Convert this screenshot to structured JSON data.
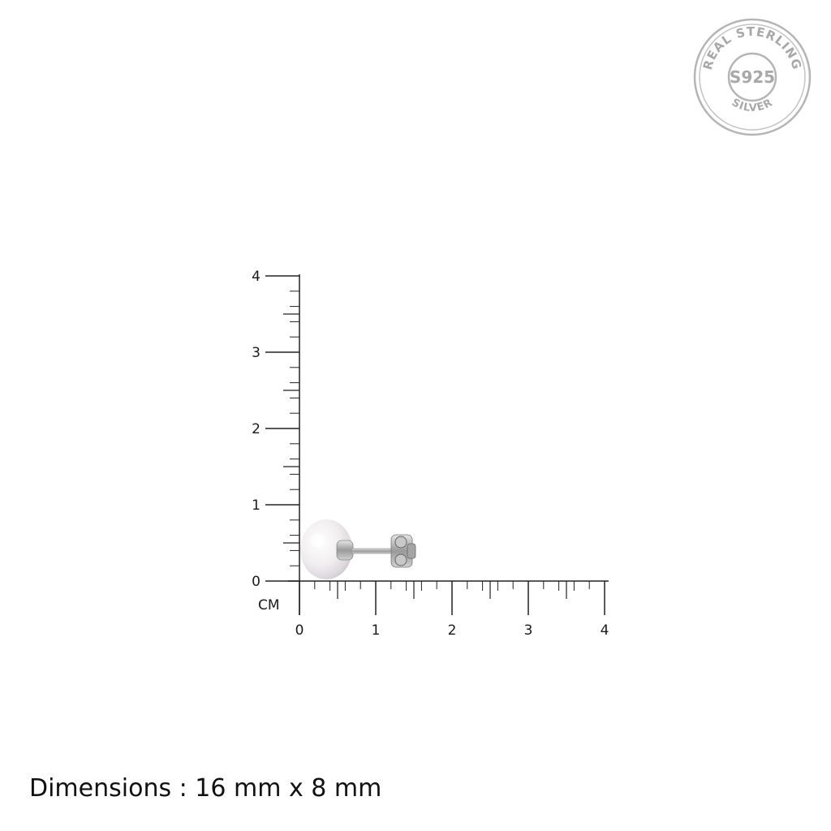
{
  "badge": {
    "arc_top": "REAL STERLING",
    "center": "S925",
    "arc_bottom": "SILVER"
  },
  "ruler": {
    "unit_label": "CM",
    "x_tick_labels": [
      "0",
      "1",
      "2",
      "3",
      "4"
    ],
    "y_tick_labels": [
      "0",
      "1",
      "2",
      "3",
      "4"
    ],
    "minor_divisions_per_cm": 5
  },
  "product": {
    "name": "pearl-stud-earring",
    "colors": {
      "pearl": "#f4f2f3",
      "metal": "#b8b8b8"
    }
  },
  "dimensions_text": "Dimensions : 16 mm x 8 mm"
}
